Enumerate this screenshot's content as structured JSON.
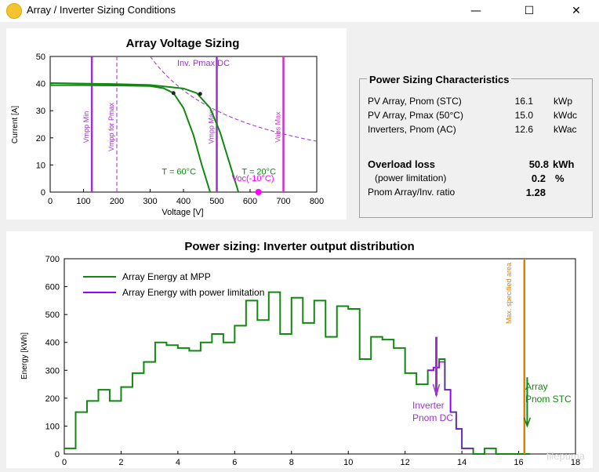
{
  "window": {
    "title": "Array / Inverter Sizing Conditions",
    "minimize_glyph": "—",
    "maximize_glyph": "☐",
    "close_glyph": "✕"
  },
  "voltage_chart": {
    "title": "Array Voltage Sizing",
    "xlabel": "Voltage [V]",
    "ylabel": "Current [A]",
    "x_ticks": [
      "0",
      "100",
      "200",
      "300",
      "400",
      "500",
      "600",
      "700",
      "800"
    ],
    "y_ticks": [
      "0",
      "10",
      "20",
      "30",
      "40",
      "50"
    ],
    "labels": {
      "inv_pmax": "Inv. Pmax DC",
      "vmpp_min": "Vmpp Min",
      "vmpp_pmax": "Vmpp for Pmax",
      "vmpp_max": "Vmpp Max",
      "vabs_max": "Vabs Max",
      "t60": "T = 60°C",
      "t20": "T = 20°C",
      "voc": "Voc(-10°C)"
    }
  },
  "sizing": {
    "title": "Power Sizing Characteristics",
    "rows": [
      {
        "label": "PV Array, Pnom (STC)",
        "value": "16.1",
        "unit": "kWp"
      },
      {
        "label": "PV Array, Pmax (50°C)",
        "value": "15.0",
        "unit": "kWdc"
      },
      {
        "label": "Inverters, Pnom (AC)",
        "value": "12.6",
        "unit": "kWac"
      }
    ],
    "overload_label": "Overload loss",
    "overload_value": "50.8",
    "overload_unit": "kWh",
    "power_limitation_label": "(power limitation)",
    "power_limitation_value": "0.2",
    "power_limitation_unit": "%",
    "ratio_label": "Pnom Array/Inv. ratio",
    "ratio_value": "1.28"
  },
  "chart_data": [
    {
      "type": "line",
      "title": "Array Voltage Sizing",
      "xlabel": "Voltage [V]",
      "ylabel": "Current [A]",
      "xlim": [
        0,
        800
      ],
      "ylim": [
        0,
        50
      ],
      "series": [
        {
          "name": "T = 60°C",
          "color": "#118811",
          "points": [
            [
              0,
              39.4
            ],
            [
              100,
              39.4
            ],
            [
              200,
              39.3
            ],
            [
              300,
              39.1
            ],
            [
              340,
              38.3
            ],
            [
              370,
              36.5
            ],
            [
              400,
              31
            ],
            [
              430,
              21
            ],
            [
              455,
              10
            ],
            [
              480,
              0
            ]
          ]
        },
        {
          "name": "T = 20°C",
          "color": "#118811",
          "points": [
            [
              0,
              40.2
            ],
            [
              100,
              40
            ],
            [
              200,
              39.8
            ],
            [
              300,
              39.5
            ],
            [
              400,
              38.2
            ],
            [
              440,
              36.5
            ],
            [
              480,
              31
            ],
            [
              510,
              22
            ],
            [
              540,
              10
            ],
            [
              565,
              0
            ]
          ]
        }
      ],
      "vertical_lines": [
        {
          "label": "Vmpp Min",
          "x": 125,
          "style": "solid",
          "color": "#9933cc"
        },
        {
          "label": "Vmpp for Pmax",
          "x": 200,
          "style": "dashed",
          "color": "#9933cc"
        },
        {
          "label": "Vmpp Max",
          "x": 500,
          "style": "solid",
          "color": "#9933cc"
        },
        {
          "label": "Vabs Max",
          "x": 700,
          "style": "solid",
          "color": "#cc33cc"
        }
      ],
      "inverter_curve": {
        "label": "Inv. Pmax DC",
        "power_w": 15000,
        "color": "#9933cc"
      },
      "mpp_points": [
        [
          370,
          36.5
        ],
        [
          450,
          36.2
        ]
      ],
      "voc_point": {
        "label": "Voc(-10°C)",
        "x": 625,
        "y": 0,
        "color": "#ff00ff"
      }
    },
    {
      "type": "line",
      "title": "Power sizing: Inverter output distribution",
      "xlabel": "",
      "ylabel": "Energy [kWh]",
      "xlim": [
        0,
        18
      ],
      "ylim": [
        0,
        700
      ],
      "x_ticks": [
        0,
        2,
        4,
        6,
        8,
        10,
        12,
        14,
        16,
        18
      ],
      "y_ticks": [
        0,
        100,
        200,
        300,
        400,
        500,
        600,
        700
      ],
      "legend": "top-left",
      "series": [
        {
          "name": "Array Energy at MPP",
          "color": "#118811",
          "x": [
            0,
            0.4,
            0.8,
            1.2,
            1.6,
            2.0,
            2.4,
            2.8,
            3.2,
            3.6,
            4.0,
            4.4,
            4.8,
            5.2,
            5.6,
            6.0,
            6.4,
            6.8,
            7.2,
            7.6,
            8.0,
            8.4,
            8.8,
            9.2,
            9.6,
            10.0,
            10.4,
            10.8,
            11.2,
            11.6,
            12.0,
            12.4,
            12.8,
            13.0,
            13.2,
            13.4,
            13.6,
            13.8,
            14.0,
            14.4,
            14.8,
            15.2,
            15.6,
            16.0
          ],
          "values": [
            20,
            150,
            190,
            230,
            190,
            240,
            290,
            330,
            400,
            390,
            380,
            370,
            400,
            430,
            400,
            460,
            550,
            480,
            580,
            430,
            560,
            470,
            550,
            420,
            530,
            520,
            340,
            420,
            410,
            380,
            290,
            250,
            300,
            310,
            340,
            230,
            150,
            90,
            20,
            0,
            20,
            0,
            0,
            0
          ]
        },
        {
          "name": "Array Energy with power limitation",
          "color": "#9900ff",
          "x": [
            12.8,
            13.0,
            13.2,
            13.4,
            13.6,
            13.8,
            14.0
          ],
          "values": [
            300,
            310,
            330,
            230,
            150,
            90,
            20
          ]
        }
      ],
      "annotations": [
        {
          "label": "Inverter Pnom DC",
          "x": 13.1,
          "color": "#9933cc"
        },
        {
          "label": "Max. specified area",
          "x": 16.2,
          "color": "#e08000"
        },
        {
          "label": "Array Pnom STC",
          "x": 16.3,
          "color": "#118811"
        }
      ]
    }
  ],
  "output_chart": {
    "title": "Power sizing: Inverter output distribution",
    "ylabel": "Energy [kWh]",
    "legend_mpp": "Array Energy at MPP",
    "legend_limit": "Array Energy with power limitation",
    "inverter_label_1": "Inverter",
    "inverter_label_2": "Pnom DC",
    "max_area_label": "Max. specified area",
    "array_label_1": "Array",
    "array_label_2": "Pnom STC",
    "x_ticks": [
      "0",
      "2",
      "4",
      "6",
      "8",
      "10",
      "12",
      "14",
      "16",
      "18"
    ],
    "y_ticks": [
      "0",
      "100",
      "200",
      "300",
      "400",
      "500",
      "600",
      "700"
    ]
  },
  "watermark": "filepuma"
}
